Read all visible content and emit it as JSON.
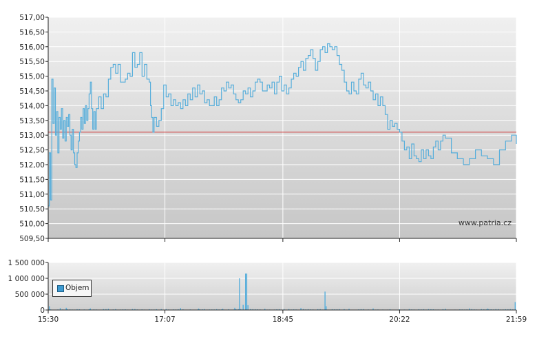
{
  "watermark": "www.patria.cz",
  "colors": {
    "price_line": "#57aedb",
    "reference_line": "#d04040",
    "volume_bar": "#57aedb",
    "grid": "#ffffff",
    "plot_top": "#f0f0f0",
    "plot_bottom": "#c6c6c6"
  },
  "chart_data": [
    {
      "type": "line",
      "title": "",
      "xlabel": "",
      "ylabel": "",
      "ylim": [
        509.5,
        517.0
      ],
      "y_ticks": [
        "517,00",
        "516,50",
        "516,00",
        "515,50",
        "515,00",
        "514,50",
        "514,00",
        "513,50",
        "513,00",
        "512,50",
        "512,00",
        "511,50",
        "511,00",
        "510,50",
        "510,00",
        "509,50"
      ],
      "x_ticks": [
        "15:30",
        "17:07",
        "18:45",
        "20:22",
        "21:59"
      ],
      "xlim": [
        "15:30",
        "21:59"
      ],
      "grid": true,
      "reference_line": 513.1,
      "series": [
        {
          "points": [
            [
              "15:30",
              510.6
            ],
            [
              "15:31",
              512.4
            ],
            [
              "15:32",
              510.8
            ],
            [
              "15:33",
              514.9
            ],
            [
              "15:34",
              513.4
            ],
            [
              "15:35",
              514.6
            ],
            [
              "15:36",
              513.0
            ],
            [
              "15:37",
              513.8
            ],
            [
              "15:38",
              512.4
            ],
            [
              "15:39",
              513.6
            ],
            [
              "15:40",
              513.2
            ],
            [
              "15:41",
              513.9
            ],
            [
              "15:42",
              512.9
            ],
            [
              "15:43",
              513.5
            ],
            [
              "15:44",
              512.8
            ],
            [
              "15:45",
              513.6
            ],
            [
              "15:46",
              513.3
            ],
            [
              "15:47",
              513.7
            ],
            [
              "15:48",
              513.0
            ],
            [
              "15:49",
              512.5
            ],
            [
              "15:50",
              513.2
            ],
            [
              "15:51",
              512.4
            ],
            [
              "15:52",
              512.0
            ],
            [
              "15:53",
              511.9
            ],
            [
              "15:54",
              512.4
            ],
            [
              "15:55",
              512.8
            ],
            [
              "15:56",
              513.1
            ],
            [
              "15:57",
              513.6
            ],
            [
              "15:58",
              513.2
            ],
            [
              "15:59",
              513.9
            ],
            [
              "16:00",
              513.4
            ],
            [
              "16:01",
              514.0
            ],
            [
              "16:02",
              513.5
            ],
            [
              "16:03",
              513.9
            ],
            [
              "16:04",
              514.4
            ],
            [
              "16:05",
              514.8
            ],
            [
              "16:06",
              513.9
            ],
            [
              "16:07",
              513.2
            ],
            [
              "16:08",
              513.8
            ],
            [
              "16:09",
              513.2
            ],
            [
              "16:10",
              513.9
            ],
            [
              "16:12",
              514.3
            ],
            [
              "16:14",
              513.9
            ],
            [
              "16:16",
              514.4
            ],
            [
              "16:18",
              514.3
            ],
            [
              "16:20",
              514.9
            ],
            [
              "16:22",
              515.3
            ],
            [
              "16:24",
              515.4
            ],
            [
              "16:26",
              515.1
            ],
            [
              "16:28",
              515.4
            ],
            [
              "16:30",
              514.8
            ],
            [
              "16:32",
              514.8
            ],
            [
              "16:34",
              514.9
            ],
            [
              "16:36",
              515.1
            ],
            [
              "16:38",
              515.0
            ],
            [
              "16:40",
              515.8
            ],
            [
              "16:42",
              515.3
            ],
            [
              "16:44",
              515.4
            ],
            [
              "16:46",
              515.8
            ],
            [
              "16:48",
              515.0
            ],
            [
              "16:50",
              515.4
            ],
            [
              "16:52",
              514.9
            ],
            [
              "16:54",
              514.8
            ],
            [
              "16:55",
              514.0
            ],
            [
              "16:56",
              513.6
            ],
            [
              "16:57",
              513.1
            ],
            [
              "16:58",
              513.6
            ],
            [
              "17:00",
              513.3
            ],
            [
              "17:02",
              513.5
            ],
            [
              "17:04",
              513.9
            ],
            [
              "17:06",
              514.7
            ],
            [
              "17:08",
              514.3
            ],
            [
              "17:10",
              514.4
            ],
            [
              "17:12",
              514.0
            ],
            [
              "17:14",
              514.2
            ],
            [
              "17:16",
              514.0
            ],
            [
              "17:18",
              514.1
            ],
            [
              "17:20",
              513.9
            ],
            [
              "17:22",
              514.2
            ],
            [
              "17:24",
              514.0
            ],
            [
              "17:26",
              514.4
            ],
            [
              "17:28",
              514.2
            ],
            [
              "17:30",
              514.6
            ],
            [
              "17:32",
              514.3
            ],
            [
              "17:34",
              514.7
            ],
            [
              "17:36",
              514.4
            ],
            [
              "17:38",
              514.5
            ],
            [
              "17:40",
              514.1
            ],
            [
              "17:42",
              514.2
            ],
            [
              "17:44",
              514.0
            ],
            [
              "17:46",
              514.0
            ],
            [
              "17:48",
              514.3
            ],
            [
              "17:50",
              514.0
            ],
            [
              "17:52",
              514.2
            ],
            [
              "17:54",
              514.6
            ],
            [
              "17:56",
              514.5
            ],
            [
              "17:58",
              514.8
            ],
            [
              "18:00",
              514.6
            ],
            [
              "18:02",
              514.7
            ],
            [
              "18:04",
              514.4
            ],
            [
              "18:06",
              514.2
            ],
            [
              "18:08",
              514.1
            ],
            [
              "18:10",
              514.2
            ],
            [
              "18:12",
              514.5
            ],
            [
              "18:14",
              514.4
            ],
            [
              "18:16",
              514.6
            ],
            [
              "18:18",
              514.3
            ],
            [
              "18:20",
              514.5
            ],
            [
              "18:22",
              514.8
            ],
            [
              "18:24",
              514.9
            ],
            [
              "18:26",
              514.8
            ],
            [
              "18:28",
              514.5
            ],
            [
              "18:30",
              514.5
            ],
            [
              "18:32",
              514.7
            ],
            [
              "18:34",
              514.6
            ],
            [
              "18:36",
              514.8
            ],
            [
              "18:38",
              514.4
            ],
            [
              "18:40",
              514.8
            ],
            [
              "18:42",
              515.0
            ],
            [
              "18:44",
              514.5
            ],
            [
              "18:46",
              514.7
            ],
            [
              "18:48",
              514.4
            ],
            [
              "18:50",
              514.6
            ],
            [
              "18:52",
              514.9
            ],
            [
              "18:54",
              515.1
            ],
            [
              "18:56",
              515.0
            ],
            [
              "18:58",
              515.3
            ],
            [
              "19:00",
              515.5
            ],
            [
              "19:02",
              515.2
            ],
            [
              "19:04",
              515.6
            ],
            [
              "19:06",
              515.7
            ],
            [
              "19:08",
              515.9
            ],
            [
              "19:10",
              515.6
            ],
            [
              "19:12",
              515.2
            ],
            [
              "19:14",
              515.5
            ],
            [
              "19:16",
              515.9
            ],
            [
              "19:18",
              516.0
            ],
            [
              "19:20",
              515.8
            ],
            [
              "19:22",
              516.1
            ],
            [
              "19:24",
              516.0
            ],
            [
              "19:26",
              515.9
            ],
            [
              "19:28",
              516.0
            ],
            [
              "19:30",
              515.7
            ],
            [
              "19:32",
              515.4
            ],
            [
              "19:34",
              515.2
            ],
            [
              "19:36",
              514.8
            ],
            [
              "19:38",
              514.5
            ],
            [
              "19:40",
              514.4
            ],
            [
              "19:42",
              514.8
            ],
            [
              "19:44",
              514.5
            ],
            [
              "19:46",
              514.4
            ],
            [
              "19:48",
              514.9
            ],
            [
              "19:50",
              515.1
            ],
            [
              "19:52",
              514.7
            ],
            [
              "19:54",
              514.6
            ],
            [
              "19:56",
              514.8
            ],
            [
              "19:58",
              514.5
            ],
            [
              "20:00",
              514.2
            ],
            [
              "20:02",
              514.4
            ],
            [
              "20:04",
              514.0
            ],
            [
              "20:06",
              514.3
            ],
            [
              "20:08",
              514.0
            ],
            [
              "20:10",
              513.7
            ],
            [
              "20:12",
              513.2
            ],
            [
              "20:14",
              513.5
            ],
            [
              "20:16",
              513.3
            ],
            [
              "20:18",
              513.4
            ],
            [
              "20:20",
              513.2
            ],
            [
              "20:22",
              513.1
            ],
            [
              "20:24",
              512.8
            ],
            [
              "20:26",
              512.5
            ],
            [
              "20:28",
              512.6
            ],
            [
              "20:30",
              512.2
            ],
            [
              "20:32",
              512.7
            ],
            [
              "20:34",
              512.3
            ],
            [
              "20:36",
              512.2
            ],
            [
              "20:38",
              512.1
            ],
            [
              "20:40",
              512.5
            ],
            [
              "20:42",
              512.2
            ],
            [
              "20:44",
              512.5
            ],
            [
              "20:46",
              512.3
            ],
            [
              "20:48",
              512.2
            ],
            [
              "20:50",
              512.6
            ],
            [
              "20:52",
              512.8
            ],
            [
              "20:54",
              512.5
            ],
            [
              "20:56",
              512.8
            ],
            [
              "20:58",
              513.0
            ],
            [
              "21:00",
              512.9
            ],
            [
              "21:05",
              512.4
            ],
            [
              "21:10",
              512.2
            ],
            [
              "21:15",
              512.0
            ],
            [
              "21:20",
              512.2
            ],
            [
              "21:25",
              512.5
            ],
            [
              "21:30",
              512.3
            ],
            [
              "21:35",
              512.2
            ],
            [
              "21:40",
              512.0
            ],
            [
              "21:45",
              512.5
            ],
            [
              "21:50",
              512.8
            ],
            [
              "21:55",
              513.0
            ],
            [
              "21:59",
              512.7
            ]
          ]
        }
      ]
    },
    {
      "type": "bar",
      "title": "",
      "xlabel": "",
      "ylabel": "",
      "ylim": [
        0,
        1500000
      ],
      "y_ticks": [
        "1 500 000",
        "1 000 000",
        "500 000",
        "0"
      ],
      "x_ticks": [
        "15:30",
        "17:07",
        "18:45",
        "20:22",
        "21:59"
      ],
      "grid": true,
      "legend": {
        "placement": "bottom-left"
      },
      "series": [
        {
          "name": "Objem",
          "baseline": 15000,
          "spikes": [
            [
              "15:31",
              120000
            ],
            [
              "15:40",
              60000
            ],
            [
              "15:45",
              70000
            ],
            [
              "16:05",
              50000
            ],
            [
              "16:20",
              40000
            ],
            [
              "16:40",
              30000
            ],
            [
              "17:00",
              25000
            ],
            [
              "17:20",
              60000
            ],
            [
              "17:35",
              45000
            ],
            [
              "17:55",
              40000
            ],
            [
              "18:05",
              70000
            ],
            [
              "18:09",
              1000000
            ],
            [
              "18:12",
              160000
            ],
            [
              "18:14",
              1150000
            ],
            [
              "18:15",
              1150000
            ],
            [
              "18:16",
              150000
            ],
            [
              "18:30",
              40000
            ],
            [
              "18:50",
              30000
            ],
            [
              "19:00",
              60000
            ],
            [
              "19:20",
              580000
            ],
            [
              "19:21",
              120000
            ],
            [
              "19:40",
              40000
            ],
            [
              "20:00",
              50000
            ],
            [
              "20:30",
              30000
            ],
            [
              "21:00",
              40000
            ],
            [
              "21:20",
              50000
            ],
            [
              "21:35",
              45000
            ],
            [
              "21:58",
              250000
            ]
          ]
        }
      ]
    }
  ]
}
